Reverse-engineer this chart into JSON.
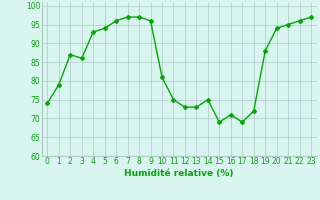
{
  "x": [
    0,
    1,
    2,
    3,
    4,
    5,
    6,
    7,
    8,
    9,
    10,
    11,
    12,
    13,
    14,
    15,
    16,
    17,
    18,
    19,
    20,
    21,
    22,
    23
  ],
  "y": [
    74,
    79,
    87,
    86,
    93,
    94,
    96,
    97,
    97,
    96,
    81,
    75,
    73,
    73,
    75,
    69,
    71,
    69,
    72,
    88,
    94,
    95,
    96,
    97
  ],
  "line_color": "#00aa00",
  "marker": "D",
  "marker_size": 2,
  "background_color": "#d8f5f0",
  "grid_color": "#b0c8c8",
  "xlabel": "Humidité relative (%)",
  "xlim": [
    -0.5,
    23.5
  ],
  "ylim": [
    60,
    101
  ],
  "yticks": [
    60,
    65,
    70,
    75,
    80,
    85,
    90,
    95,
    100
  ],
  "xticks": [
    0,
    1,
    2,
    3,
    4,
    5,
    6,
    7,
    8,
    9,
    10,
    11,
    12,
    13,
    14,
    15,
    16,
    17,
    18,
    19,
    20,
    21,
    22,
    23
  ],
  "tick_fontsize": 5.5,
  "xlabel_fontsize": 6.5,
  "line_width": 1.0
}
